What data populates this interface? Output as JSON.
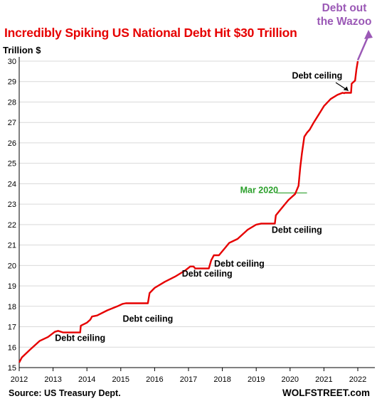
{
  "title": "Incredibly Spiking US National Debt Hit $30 Trillion",
  "source": "Source: US Treasury Dept.",
  "brand": "WOLFSTREET.com",
  "colors": {
    "title": "#e60000",
    "line": "#e60000",
    "annotation": "#000000",
    "mar2020": "#2ca02c",
    "wazoo": "#9b59b6"
  },
  "chart_data": {
    "type": "line",
    "title": "Incredibly Spiking US National Debt Hit $30 Trillion",
    "ylabel": "Trillion $",
    "xlabel": "",
    "xlim": [
      2012,
      2022
    ],
    "ylim": [
      15,
      30
    ],
    "x_ticks": [
      "2012",
      "2013",
      "2014",
      "2015",
      "2016",
      "2017",
      "2018",
      "2019",
      "2020",
      "2021",
      "2022"
    ],
    "y_ticks": [
      "15",
      "16",
      "17",
      "18",
      "19",
      "20",
      "21",
      "22",
      "23",
      "24",
      "25",
      "26",
      "27",
      "28",
      "29",
      "30"
    ],
    "grid": "horizontal",
    "series": [
      {
        "x": [
          2012.0,
          2012.08,
          2012.3,
          2012.6,
          2012.85,
          2013.05,
          2013.15,
          2013.3,
          2013.8,
          2013.82,
          2014.0,
          2014.1,
          2014.15,
          2014.3,
          2014.6,
          2014.9,
          2015.05,
          2015.15,
          2015.8,
          2015.85,
          2016.0,
          2016.3,
          2016.6,
          2016.9,
          2017.05,
          2017.15,
          2017.2,
          2017.6,
          2017.67,
          2017.75,
          2017.9,
          2018.1,
          2018.2,
          2018.45,
          2018.75,
          2019.0,
          2019.15,
          2019.55,
          2019.58,
          2019.75,
          2019.95,
          2020.15,
          2020.25,
          2020.3,
          2020.35,
          2020.42,
          2020.5,
          2020.58,
          2020.7,
          2020.85,
          2021.0,
          2021.2,
          2021.4,
          2021.55,
          2021.6,
          2021.62,
          2021.8,
          2021.82,
          2021.92,
          2021.96,
          2022.0
        ],
        "y": [
          15.25,
          15.5,
          15.85,
          16.3,
          16.5,
          16.75,
          16.8,
          16.72,
          16.72,
          17.05,
          17.2,
          17.35,
          17.5,
          17.55,
          17.8,
          18.0,
          18.12,
          18.15,
          18.15,
          18.65,
          18.9,
          19.2,
          19.45,
          19.75,
          19.95,
          19.95,
          19.85,
          19.85,
          20.25,
          20.5,
          20.5,
          20.9,
          21.1,
          21.3,
          21.75,
          22.0,
          22.05,
          22.05,
          22.45,
          22.8,
          23.2,
          23.5,
          23.9,
          24.8,
          25.5,
          26.3,
          26.5,
          26.65,
          27.0,
          27.4,
          27.8,
          28.15,
          28.35,
          28.45,
          28.43,
          28.45,
          28.45,
          28.9,
          29.05,
          29.6,
          30.0
        ]
      }
    ],
    "annotations": [
      {
        "text": "Debt ceiling",
        "x": 2013.8,
        "y": 16.3
      },
      {
        "text": "Debt ceiling",
        "x": 2015.8,
        "y": 17.25
      },
      {
        "text": "Debt ceiling",
        "x": 2017.55,
        "y": 19.45
      },
      {
        "text": "Debt ceiling",
        "x": 2018.5,
        "y": 19.95
      },
      {
        "text": "Debt ceiling",
        "x": 2020.2,
        "y": 21.6
      },
      {
        "text": "Debt ceiling",
        "x": 2020.8,
        "y": 29.15
      },
      {
        "text": "Mar 2020",
        "x": 2019.65,
        "y": 23.55
      }
    ],
    "extra_annotation": "Debt out the Wazoo"
  }
}
